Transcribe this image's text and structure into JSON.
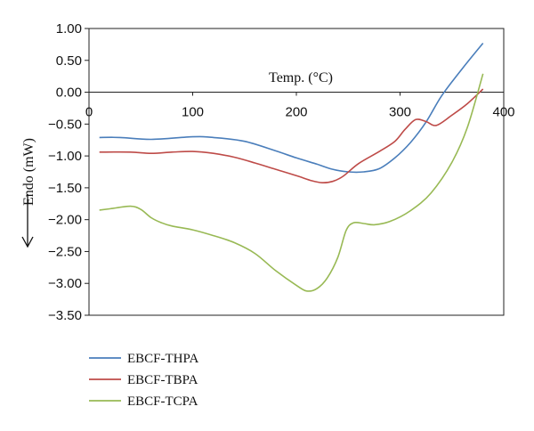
{
  "chart_data": {
    "type": "line",
    "xlabel": "Temp. (°C)",
    "ylabel": "Endo (mW)",
    "xlim": [
      0,
      400
    ],
    "ylim": [
      -3.5,
      1.0
    ],
    "x_ticks": [
      0,
      100,
      200,
      300,
      400
    ],
    "y_ticks": [
      1.0,
      0.5,
      0.0,
      -0.5,
      -1.0,
      -1.5,
      -2.0,
      -2.5,
      -3.0,
      -3.5
    ],
    "x_tick_labels": [
      "0",
      "100",
      "200",
      "300",
      "400"
    ],
    "y_tick_labels": [
      "1.00",
      "0.50",
      "0.00",
      "−0.50",
      "−1.00",
      "−1.50",
      "−2.00",
      "−2.50",
      "−3.00",
      "−3.50"
    ],
    "grid": false,
    "legend_position": "bottom-left",
    "series": [
      {
        "name": "EBCF-THPA",
        "color": "#4a7ebb",
        "x": [
          10,
          30,
          60,
          100,
          120,
          150,
          180,
          200,
          220,
          235,
          250,
          265,
          280,
          295,
          310,
          325,
          340,
          360,
          380
        ],
        "y": [
          -0.71,
          -0.71,
          -0.74,
          -0.7,
          -0.71,
          -0.77,
          -0.92,
          -1.03,
          -1.13,
          -1.21,
          -1.25,
          -1.25,
          -1.2,
          -1.03,
          -0.79,
          -0.47,
          -0.06,
          0.37,
          0.77
        ]
      },
      {
        "name": "EBCF-TBPA",
        "color": "#be4b48",
        "x": [
          10,
          40,
          60,
          80,
          100,
          120,
          140,
          160,
          180,
          200,
          215,
          225,
          235,
          245,
          260,
          280,
          295,
          305,
          315,
          325,
          335,
          350,
          365,
          380
        ],
        "y": [
          -0.94,
          -0.94,
          -0.96,
          -0.94,
          -0.93,
          -0.96,
          -1.02,
          -1.11,
          -1.21,
          -1.31,
          -1.39,
          -1.42,
          -1.4,
          -1.32,
          -1.12,
          -0.93,
          -0.77,
          -0.58,
          -0.43,
          -0.46,
          -0.52,
          -0.36,
          -0.18,
          0.05
        ]
      },
      {
        "name": "EBCF-TCPA",
        "color": "#98b954",
        "x": [
          10,
          20,
          40,
          50,
          60,
          70,
          80,
          100,
          120,
          140,
          160,
          180,
          200,
          210,
          220,
          230,
          240,
          248,
          255,
          265,
          275,
          290,
          310,
          330,
          350,
          365,
          380
        ],
        "y": [
          -1.85,
          -1.83,
          -1.79,
          -1.84,
          -1.97,
          -2.05,
          -2.1,
          -2.16,
          -2.25,
          -2.36,
          -2.53,
          -2.8,
          -3.03,
          -3.12,
          -3.08,
          -2.91,
          -2.59,
          -2.17,
          -2.05,
          -2.06,
          -2.08,
          -2.03,
          -1.86,
          -1.58,
          -1.1,
          -0.55,
          0.29
        ]
      }
    ]
  }
}
